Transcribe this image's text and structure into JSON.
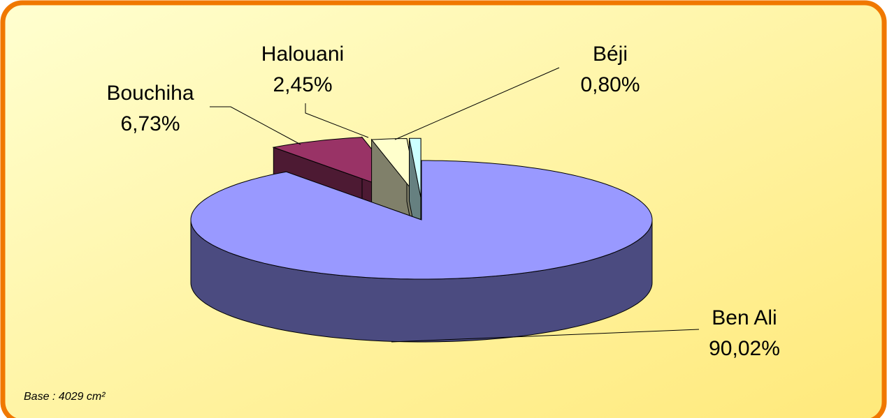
{
  "chart_data": {
    "type": "pie",
    "categories": [
      "Ben Ali",
      "Bouchiha",
      "Halouani",
      "Béji"
    ],
    "values": [
      90.02,
      6.73,
      2.45,
      0.8
    ],
    "value_labels": [
      "90,02%",
      "6,73%",
      "2,45%",
      "0,80%"
    ],
    "colors": [
      "#9999ff",
      "#993366",
      "#ffffcc",
      "#ccffff"
    ],
    "side_colors": [
      "#4b4b80",
      "#4d1a33",
      "#80806a",
      "#668080"
    ],
    "note": "Base : 4029 cm²"
  }
}
